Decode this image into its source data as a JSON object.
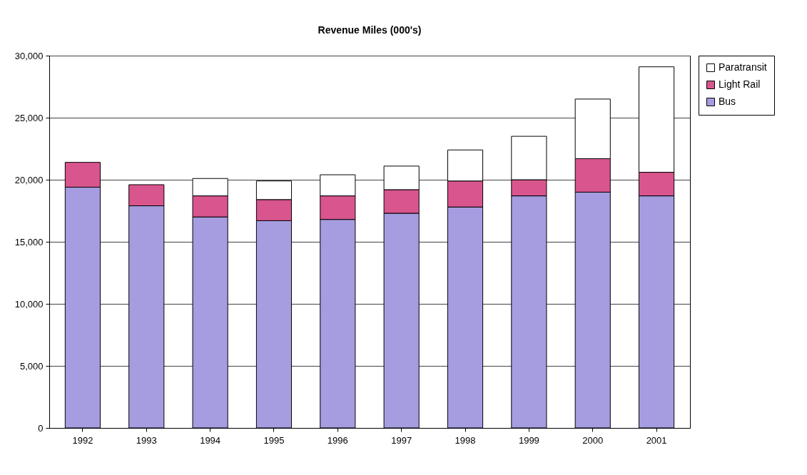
{
  "chart_data": {
    "type": "bar",
    "title": "Revenue Miles (000's)",
    "stacked": true,
    "categories": [
      "1992",
      "1993",
      "1994",
      "1995",
      "1996",
      "1997",
      "1998",
      "1999",
      "2000",
      "2001"
    ],
    "series": [
      {
        "name": "Bus",
        "color": "#a59de0",
        "values": [
          19400,
          17900,
          17000,
          16700,
          16800,
          17300,
          17800,
          18700,
          19000,
          18700
        ]
      },
      {
        "name": "Light Rail",
        "color": "#d9558e",
        "values": [
          2000,
          1700,
          1700,
          1700,
          1900,
          1900,
          2100,
          1300,
          2700,
          1900
        ]
      },
      {
        "name": "Paratransit",
        "color": "#ffffff",
        "values": [
          null,
          null,
          1400,
          1500,
          1700,
          1900,
          2500,
          3500,
          4800,
          8500
        ]
      }
    ],
    "ylim": [
      0,
      30000
    ],
    "yticks": [
      {
        "value": 0,
        "label": "0"
      },
      {
        "value": 5000,
        "label": "5,000"
      },
      {
        "value": 10000,
        "label": "10,000"
      },
      {
        "value": 15000,
        "label": "15,000"
      },
      {
        "value": 20000,
        "label": "20,000"
      },
      {
        "value": 25000,
        "label": "25,000"
      },
      {
        "value": 30000,
        "label": "30,000"
      }
    ],
    "grid": "y",
    "legend": "right"
  }
}
